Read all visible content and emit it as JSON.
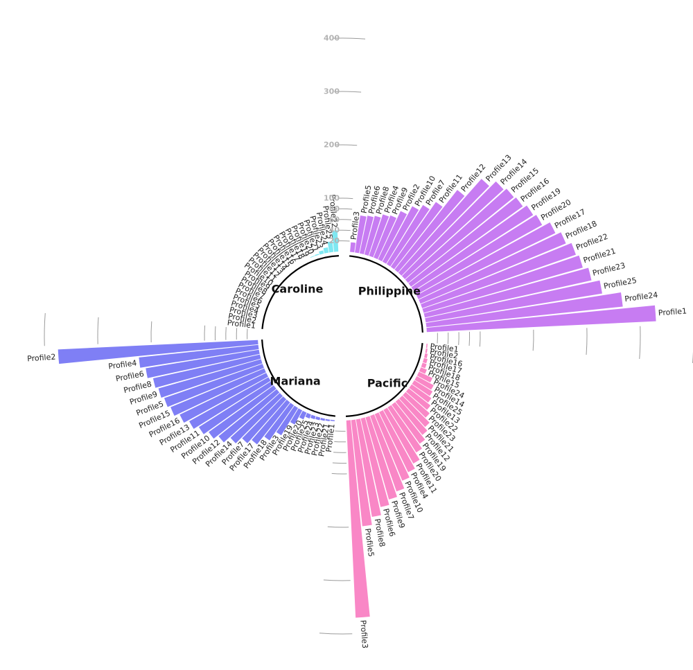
{
  "chart_data": {
    "type": "bar",
    "subtype": "circular-barplot",
    "title": "",
    "xlabel": "",
    "ylabel": "",
    "ylim": [
      0,
      500
    ],
    "y_ticks": [
      20,
      40,
      60,
      80,
      100,
      200,
      300,
      400,
      500
    ],
    "grid": "partial arcs between groups",
    "groups": [
      {
        "name": "Philippine",
        "color": "#c77cf2",
        "categories": [
          "Profile3",
          "Profile5",
          "Profile6",
          "Profile8",
          "Profile4",
          "Profile9",
          "Profile2",
          "Profile10",
          "Profile7",
          "Profile11",
          "Profile12",
          "Profile13",
          "Profile14",
          "Profile15",
          "Profile16",
          "Profile19",
          "Profile20",
          "Profile17",
          "Profile18",
          "Profile22",
          "Profile21",
          "Profile23",
          "Profile25",
          "Profile24",
          "Profile1"
        ],
        "values": [
          18,
          70,
          72,
          75,
          82,
          85,
          100,
          118,
          130,
          148,
          190,
          235,
          250,
          255,
          258,
          265,
          270,
          285,
          295,
          305,
          310,
          320,
          335,
          370,
          430
        ]
      },
      {
        "name": "Pacific",
        "color": "#f987c6",
        "categories": [
          "Profile1",
          "Profile2",
          "Profile16",
          "Profile17",
          "Profile18",
          "Profile15",
          "Profile24",
          "Profile14",
          "Profile25",
          "Profile13",
          "Profile22",
          "Profile23",
          "Profile21",
          "Profile12",
          "Profile19",
          "Profile20",
          "Profile11",
          "Profile4",
          "Profile10",
          "Profile7",
          "Profile9",
          "Profile6",
          "Profile8",
          "Profile5",
          "Profile3"
        ],
        "values": [
          2,
          3,
          5,
          7,
          8,
          12,
          28,
          36,
          40,
          45,
          52,
          60,
          72,
          80,
          90,
          100,
          115,
          125,
          135,
          150,
          160,
          170,
          185,
          200,
          370
        ]
      },
      {
        "name": "Mariana",
        "color": "#7f7ff5",
        "categories": [
          "Profile1",
          "Profile21",
          "Profile22",
          "Profile23",
          "Profile24",
          "Profile25",
          "Profile20",
          "Profile19",
          "Profile3",
          "Profile18",
          "Profile17",
          "Profile7",
          "Profile14",
          "Profile12",
          "Profile10",
          "Profile11",
          "Profile13",
          "Profile16",
          "Profile15",
          "Profile5",
          "Profile9",
          "Profile8",
          "Profile6",
          "Profile4",
          "Profile2"
        ],
        "values": [
          2,
          3,
          4,
          5,
          6,
          8,
          14,
          30,
          60,
          80,
          100,
          110,
          125,
          140,
          150,
          160,
          170,
          180,
          190,
          195,
          200,
          205,
          215,
          225,
          375
        ]
      },
      {
        "name": "Caroline",
        "color": "#7fe8f2",
        "categories": [
          "Profile1",
          "Profile2",
          "Profile3",
          "Profile4",
          "Profile5",
          "Profile6",
          "Profile7",
          "Profile8",
          "Profile9",
          "Profile10",
          "Profile11",
          "Profile12",
          "Profile13",
          "Profile14",
          "Profile15",
          "Profile16",
          "Profile17",
          "Profile18",
          "Profile19",
          "Profile20",
          "Profile21",
          "Profile23",
          "Profile24",
          "Profile25",
          "Profile22"
        ],
        "values": [
          0,
          0,
          0,
          0,
          0,
          0,
          0,
          0,
          0,
          0,
          0,
          0,
          0,
          0,
          0,
          0,
          0,
          0,
          0,
          1,
          2,
          6,
          10,
          20,
          40
        ]
      }
    ]
  }
}
